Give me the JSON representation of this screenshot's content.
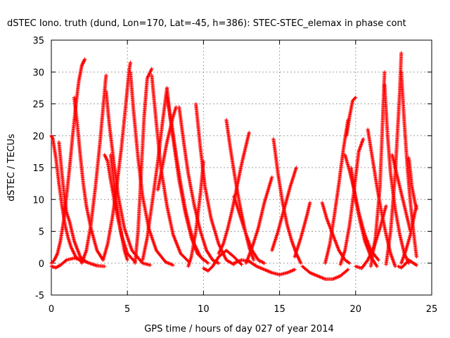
{
  "chart_data": {
    "type": "scatter",
    "title": "dSTEC Iono. truth (dund, Lon=170, Lat=-45, h=386): STEC-STEC_elemax in phase cont",
    "xlabel": "GPS time / hours of day 027 of year 2014",
    "ylabel": "dSTEC  / TECUs",
    "xlim": [
      0,
      25
    ],
    "ylim": [
      -5,
      35
    ],
    "xticks": [
      0,
      5,
      10,
      15,
      20,
      25
    ],
    "yticks": [
      -5,
      0,
      5,
      10,
      15,
      20,
      25,
      30,
      35
    ],
    "grid": true,
    "marker": "plus",
    "color": "#ff0000",
    "series": [
      {
        "x": [
          0.0,
          0.2,
          0.4,
          0.6,
          0.8,
          1.0,
          1.2,
          1.4,
          1.6,
          1.8,
          2.0,
          2.1,
          2.2
        ],
        "y": [
          0.0,
          0.5,
          1.5,
          3.5,
          6.5,
          10.5,
          15.0,
          20.0,
          24.5,
          28.5,
          31.0,
          31.5,
          32.0
        ]
      },
      {
        "x": [
          0.0,
          0.1,
          0.3,
          0.5,
          0.7,
          0.9,
          1.1,
          1.3,
          1.6,
          2.0
        ],
        "y": [
          20.0,
          19.5,
          16.5,
          12.5,
          9.0,
          6.0,
          4.0,
          2.5,
          1.0,
          0.2
        ]
      },
      {
        "x": [
          0.0,
          0.3,
          0.6,
          1.0,
          1.5,
          2.0,
          2.5,
          3.0,
          3.5
        ],
        "y": [
          -0.5,
          -0.7,
          -0.3,
          0.5,
          0.8,
          0.5,
          0.0,
          -0.4,
          -0.5
        ]
      },
      {
        "x": [
          0.5,
          0.7,
          0.9,
          1.0,
          1.2,
          1.5,
          1.9,
          2.3
        ],
        "y": [
          19.0,
          14.0,
          9.5,
          8.0,
          6.5,
          3.5,
          1.0,
          0.2
        ]
      },
      {
        "x": [
          1.5,
          1.7,
          1.9,
          2.1,
          2.3,
          2.6,
          3.0,
          3.4
        ],
        "y": [
          26.0,
          22.0,
          17.0,
          12.5,
          9.0,
          5.5,
          2.0,
          0.5
        ]
      },
      {
        "x": [
          2.0,
          2.3,
          2.6,
          2.9,
          3.2,
          3.5,
          3.6
        ],
        "y": [
          0.0,
          2.0,
          6.0,
          12.0,
          19.0,
          27.0,
          29.5
        ]
      },
      {
        "x": [
          3.6,
          3.8,
          4.1,
          4.4,
          4.8,
          5.3,
          6.0,
          6.5
        ],
        "y": [
          27.0,
          22.0,
          16.0,
          10.5,
          5.5,
          2.0,
          0.0,
          -0.3
        ]
      },
      {
        "x": [
          3.4,
          3.7,
          4.0,
          4.3,
          4.6,
          4.9,
          5.1,
          5.2
        ],
        "y": [
          0.5,
          3.0,
          7.0,
          12.0,
          18.0,
          25.0,
          30.0,
          31.5
        ]
      },
      {
        "x": [
          5.2,
          5.4,
          5.7,
          6.0,
          6.4,
          6.9,
          7.5,
          8.0
        ],
        "y": [
          30.0,
          24.0,
          16.5,
          10.5,
          5.5,
          2.0,
          0.2,
          -0.3
        ]
      },
      {
        "x": [
          3.5,
          3.7,
          3.9,
          4.2,
          4.6,
          5.0,
          5.5
        ],
        "y": [
          17.0,
          16.0,
          13.0,
          9.0,
          4.5,
          1.5,
          0.2
        ]
      },
      {
        "x": [
          3.9,
          4.2,
          4.5,
          4.8,
          5.0
        ],
        "y": [
          17.0,
          11.0,
          6.0,
          2.0,
          0.5
        ]
      },
      {
        "x": [
          5.5,
          5.7,
          5.9,
          6.1,
          6.3,
          6.6
        ],
        "y": [
          0.0,
          5.0,
          14.0,
          23.0,
          29.0,
          30.5
        ]
      },
      {
        "x": [
          6.6,
          6.9,
          7.2,
          7.6,
          8.0,
          8.5,
          9.0
        ],
        "y": [
          29.5,
          22.0,
          15.0,
          9.0,
          4.5,
          1.5,
          0.3
        ]
      },
      {
        "x": [
          6.0,
          6.3,
          6.6,
          7.0,
          7.3,
          7.6
        ],
        "y": [
          0.5,
          4.0,
          9.0,
          16.0,
          22.0,
          27.5
        ]
      },
      {
        "x": [
          7.6,
          7.8,
          8.1,
          8.4,
          8.8,
          9.2,
          9.6,
          10.0
        ],
        "y": [
          27.5,
          23.0,
          18.0,
          13.0,
          8.0,
          4.0,
          1.5,
          0.5
        ]
      },
      {
        "x": [
          7.0,
          7.2,
          7.4,
          7.6,
          7.8,
          8.0,
          8.2
        ],
        "y": [
          11.5,
          14.0,
          16.5,
          19.0,
          21.0,
          23.0,
          24.5
        ]
      },
      {
        "x": [
          7.6,
          7.9,
          8.2,
          8.5,
          8.8,
          9.1,
          9.4,
          9.8,
          10.3
        ],
        "y": [
          26.0,
          22.0,
          17.0,
          12.5,
          8.5,
          5.5,
          3.0,
          1.0,
          0.0
        ]
      },
      {
        "x": [
          8.4,
          8.7,
          9.0,
          9.4,
          9.8,
          10.2,
          10.6,
          11.0
        ],
        "y": [
          24.5,
          19.0,
          14.0,
          9.0,
          5.0,
          2.0,
          0.5,
          0.0
        ]
      },
      {
        "x": [
          9.5,
          9.8,
          10.1,
          10.5,
          11.0,
          11.5,
          12.0
        ],
        "y": [
          25.0,
          18.0,
          12.0,
          7.0,
          3.0,
          0.5,
          -0.2
        ]
      },
      {
        "x": [
          9.0,
          9.2,
          9.5,
          9.8,
          10.0
        ],
        "y": [
          -0.5,
          1.0,
          5.0,
          11.0,
          16.0
        ]
      },
      {
        "x": [
          10.0,
          10.3,
          10.6,
          11.0,
          11.5,
          12.0,
          12.5
        ],
        "y": [
          -0.8,
          -1.2,
          -0.5,
          1.0,
          2.0,
          1.0,
          -0.2
        ]
      },
      {
        "x": [
          11.5,
          11.8,
          12.1,
          12.4,
          12.7,
          13.0,
          13.3
        ],
        "y": [
          22.5,
          17.5,
          13.0,
          9.0,
          5.5,
          2.5,
          0.5
        ]
      },
      {
        "x": [
          11.0,
          11.3,
          11.6,
          11.9,
          12.2,
          12.5,
          12.8,
          13.0
        ],
        "y": [
          1.5,
          3.0,
          5.5,
          8.5,
          12.0,
          15.5,
          18.5,
          20.5
        ]
      },
      {
        "x": [
          12.0,
          12.4,
          12.8,
          13.2,
          13.6,
          14.0
        ],
        "y": [
          10.5,
          7.5,
          4.5,
          2.0,
          0.5,
          0.0
        ]
      },
      {
        "x": [
          12.8,
          13.2,
          13.6,
          14.0,
          14.5
        ],
        "y": [
          0.0,
          2.5,
          5.5,
          9.5,
          13.5
        ]
      },
      {
        "x": [
          12.0,
          12.5,
          13.0,
          13.5,
          14.0,
          14.5,
          15.0,
          15.5,
          16.0
        ],
        "y": [
          0.0,
          0.5,
          0.3,
          -0.5,
          -1.0,
          -1.5,
          -1.8,
          -1.5,
          -1.0
        ]
      },
      {
        "x": [
          14.6,
          14.9,
          15.2,
          15.5,
          15.8,
          16.1,
          16.4
        ],
        "y": [
          19.5,
          14.0,
          9.5,
          6.0,
          3.5,
          1.5,
          0.0
        ]
      },
      {
        "x": [
          14.5,
          14.9,
          15.3,
          15.7,
          16.1
        ],
        "y": [
          2.0,
          5.0,
          8.5,
          12.0,
          15.0
        ]
      },
      {
        "x": [
          16.0,
          16.4,
          16.8,
          17.0
        ],
        "y": [
          1.0,
          4.0,
          7.5,
          9.5
        ]
      },
      {
        "x": [
          16.5,
          17.0,
          17.5,
          18.0,
          18.5,
          19.0,
          19.5
        ],
        "y": [
          -0.5,
          -1.5,
          -2.0,
          -2.5,
          -2.5,
          -2.0,
          -1.0
        ]
      },
      {
        "x": [
          17.8,
          18.1,
          18.5,
          18.9,
          19.3,
          19.6
        ],
        "y": [
          9.5,
          7.0,
          4.5,
          2.0,
          0.5,
          0.0
        ]
      },
      {
        "x": [
          18.0,
          18.3,
          18.6,
          18.9,
          19.2,
          19.5
        ],
        "y": [
          0.0,
          3.0,
          7.5,
          12.5,
          18.0,
          22.5
        ]
      },
      {
        "x": [
          19.0,
          19.3,
          19.6,
          19.9,
          20.2,
          20.5
        ],
        "y": [
          -0.2,
          2.0,
          6.0,
          11.5,
          17.5,
          19.5
        ]
      },
      {
        "x": [
          19.4,
          19.6,
          19.8,
          20.0
        ],
        "y": [
          20.0,
          23.0,
          25.5,
          26.0
        ]
      },
      {
        "x": [
          19.3,
          19.6,
          19.9,
          20.2,
          20.6,
          21.0,
          21.5
        ],
        "y": [
          17.0,
          14.5,
          11.5,
          8.0,
          4.5,
          2.0,
          0.5
        ]
      },
      {
        "x": [
          19.7,
          20.0,
          20.3,
          20.6,
          21.0,
          21.4
        ],
        "y": [
          15.0,
          10.0,
          6.5,
          3.5,
          1.0,
          -0.5
        ]
      },
      {
        "x": [
          20.0,
          20.4,
          20.8,
          21.2,
          21.6,
          22.0
        ],
        "y": [
          -0.5,
          -0.8,
          0.5,
          2.5,
          5.5,
          9.0
        ]
      },
      {
        "x": [
          20.8,
          21.1,
          21.4,
          21.7,
          22.0,
          22.3,
          22.6
        ],
        "y": [
          21.0,
          16.5,
          12.0,
          8.0,
          4.5,
          1.5,
          -0.5
        ]
      },
      {
        "x": [
          21.0,
          21.3,
          21.6,
          21.9
        ],
        "y": [
          -0.5,
          4.0,
          12.0,
          30.0
        ]
      },
      {
        "x": [
          21.9,
          22.1,
          22.3,
          22.6,
          22.9,
          23.2,
          23.5
        ],
        "y": [
          28.0,
          20.0,
          14.0,
          8.5,
          4.5,
          1.5,
          0.0
        ]
      },
      {
        "x": [
          22.0,
          22.3,
          22.6,
          22.9,
          23.0
        ],
        "y": [
          -0.2,
          5.0,
          14.0,
          27.0,
          33.0
        ]
      },
      {
        "x": [
          23.0,
          23.2,
          23.4,
          23.6,
          23.8,
          24.0
        ],
        "y": [
          30.0,
          22.0,
          15.0,
          9.5,
          5.0,
          1.0
        ]
      },
      {
        "x": [
          22.4,
          22.7,
          23.0,
          23.3,
          23.6
        ],
        "y": [
          17.0,
          14.0,
          11.0,
          8.0,
          5.0
        ]
      },
      {
        "x": [
          23.0,
          23.3,
          23.6,
          23.9,
          24.0
        ],
        "y": [
          0.0,
          2.0,
          4.5,
          8.0,
          9.0
        ]
      },
      {
        "x": [
          22.8,
          23.0,
          23.2,
          23.5,
          23.8,
          24.0
        ],
        "y": [
          -0.5,
          -0.7,
          -0.3,
          0.5,
          0.0,
          -0.3
        ]
      },
      {
        "x": [
          23.5,
          23.7,
          23.9,
          24.0
        ],
        "y": [
          16.5,
          12.0,
          9.5,
          8.5
        ]
      }
    ]
  }
}
